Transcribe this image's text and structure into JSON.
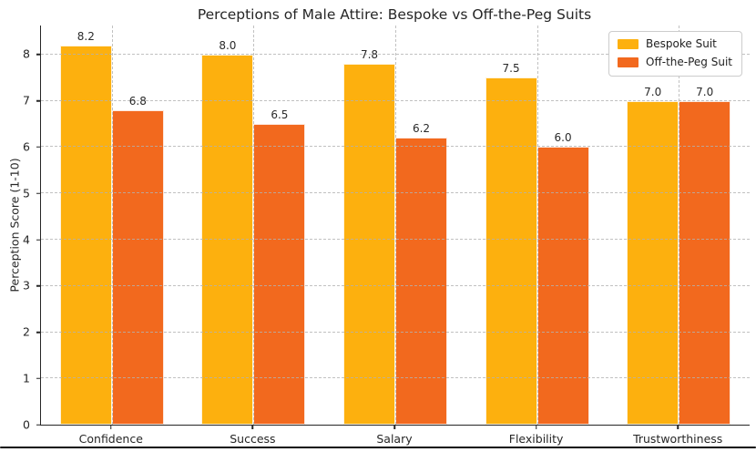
{
  "chart_data": {
    "type": "bar",
    "title": "Perceptions of Male Attire: Bespoke vs Off-the-Peg Suits",
    "categories": [
      "Confidence",
      "Success",
      "Salary",
      "Flexibility",
      "Trustworthiness"
    ],
    "series": [
      {
        "name": "Bespoke Suit",
        "color": "#FDB00E",
        "values": [
          8.2,
          8.0,
          7.8,
          7.5,
          7.0
        ]
      },
      {
        "name": "Off-the-Peg Suit",
        "color": "#F2691E",
        "values": [
          6.8,
          6.5,
          6.2,
          6.0,
          7.0
        ]
      }
    ],
    "xlabel": "",
    "ylabel": "Perception Score (1-10)",
    "ylim": [
      0,
      8.63
    ],
    "yticks": [
      0,
      1,
      2,
      3,
      4,
      5,
      6,
      7,
      8
    ],
    "grid": {
      "horizontal": true,
      "vertical": true,
      "style": "dashed",
      "color": "#b2b2b2"
    },
    "legend_position": "upper-right",
    "value_labels": true,
    "value_label_format": "0.1f"
  },
  "colors": {
    "text": "#262626",
    "axis": "#262626",
    "background": "#ffffff",
    "frame_line": "#0b0b0b",
    "legend_border": "#cccccc"
  }
}
